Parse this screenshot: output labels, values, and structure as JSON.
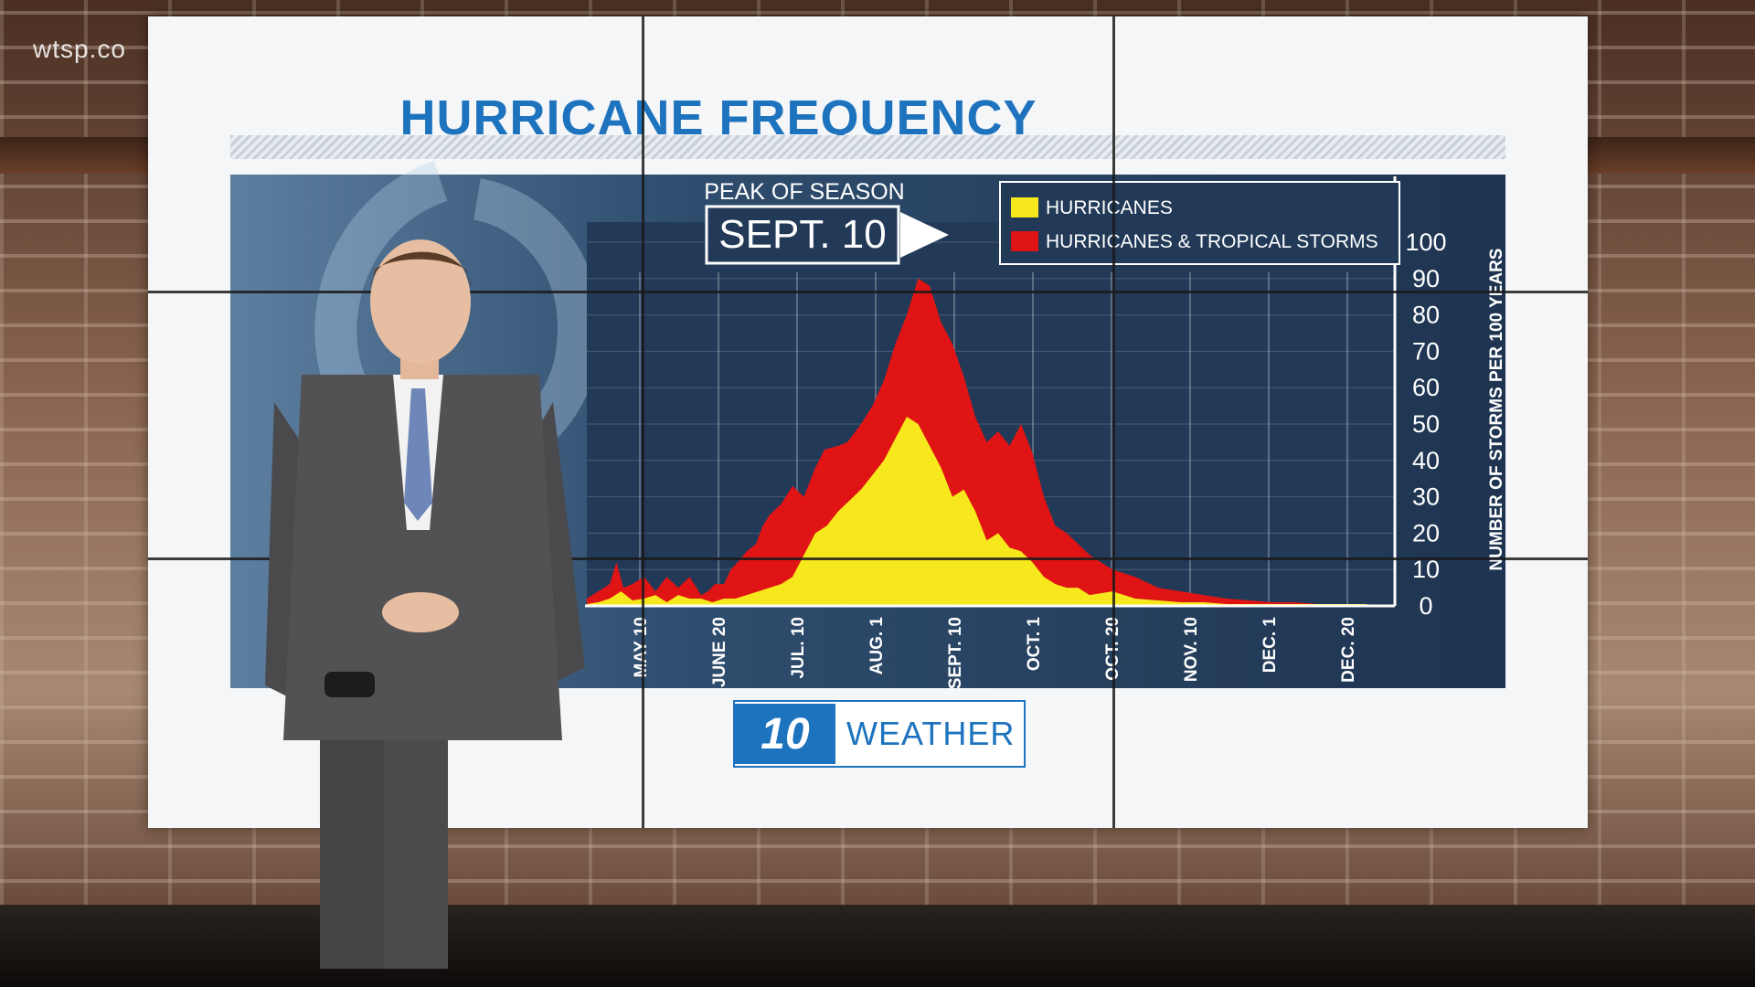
{
  "watermark": "wtsp.co",
  "logo": {
    "mark": "10",
    "text": "WEATHER"
  },
  "chart_data": {
    "type": "area",
    "title": "HURRICANE FREQUENCY",
    "ylabel": "NUMBER OF STORMS PER 100 YEARS",
    "ylim": [
      0,
      100
    ],
    "yticks": [
      0,
      10,
      20,
      30,
      40,
      50,
      60,
      70,
      80,
      90,
      100
    ],
    "xticks": [
      "MAY 10",
      "JUNE 20",
      "JUL. 10",
      "AUG. 1",
      "SEPT. 10",
      "OCT. 1",
      "OCT. 20",
      "NOV. 10",
      "DEC. 1",
      "DEC. 20"
    ],
    "grid": true,
    "legend_position": "top-right",
    "annotation": {
      "label": "PEAK OF SEASON",
      "value": "SEPT. 10"
    },
    "series": [
      {
        "name": "HURRICANES & TROPICAL STORMS",
        "color": "#e01414",
        "x": [
          0,
          0.5,
          1,
          1.3,
          1.6,
          2,
          2.5,
          3,
          3.5,
          4,
          4.5,
          5,
          5.3,
          5.6,
          6,
          6.3,
          6.6,
          7,
          7.4,
          7.7,
          8,
          8.5,
          9,
          9.5,
          10,
          10.4,
          11,
          11.4,
          12,
          12.5,
          13,
          13.5,
          14,
          14.5,
          15,
          15.5,
          16,
          16.5,
          17,
          17.5,
          18,
          18.5,
          19,
          19.5,
          20,
          20.5,
          21,
          21.5,
          22,
          23,
          24,
          25,
          26,
          27,
          28,
          29,
          30,
          31,
          32,
          33,
          34,
          35
        ],
        "values": [
          2,
          4,
          6,
          12,
          5,
          6,
          8,
          4,
          8,
          5,
          8,
          3,
          4,
          6,
          6,
          10,
          12,
          15,
          17,
          22,
          25,
          28,
          33,
          30,
          38,
          43,
          44,
          45,
          50,
          55,
          62,
          72,
          80,
          90,
          88,
          78,
          72,
          63,
          52,
          45,
          48,
          44,
          50,
          42,
          30,
          22,
          20,
          17,
          14,
          10,
          8,
          5,
          4,
          3,
          2,
          1.5,
          1,
          1,
          0.5,
          0.5,
          0.5,
          0
        ]
      },
      {
        "name": "HURRICANES",
        "color": "#f6e81c",
        "x": [
          0,
          0.5,
          1,
          1.5,
          2,
          2.5,
          3,
          3.5,
          4,
          4.5,
          5,
          5.5,
          6,
          6.5,
          7,
          7.5,
          8,
          8.5,
          9,
          9.5,
          10,
          10.5,
          11,
          11.5,
          12,
          12.5,
          13,
          13.5,
          14,
          14.5,
          15,
          15.5,
          16,
          16.5,
          17,
          17.5,
          18,
          18.5,
          19,
          19.5,
          20,
          20.5,
          21,
          21.5,
          22,
          23,
          24,
          25,
          26,
          27,
          28,
          29,
          30,
          31,
          32,
          33,
          34,
          35
        ],
        "values": [
          0.5,
          1,
          2,
          4,
          1.5,
          2,
          3,
          1,
          3,
          2,
          2,
          1,
          2,
          2,
          3,
          4,
          5,
          6,
          8,
          14,
          20,
          22,
          26,
          29,
          32,
          36,
          40,
          46,
          52,
          50,
          44,
          38,
          30,
          32,
          26,
          18,
          20,
          16,
          15,
          12,
          8,
          6,
          5,
          5,
          3,
          4,
          2,
          1.5,
          1,
          1,
          0.5,
          0.5,
          0.5,
          0.5,
          0.5,
          0.5,
          0.5,
          0
        ]
      }
    ]
  }
}
